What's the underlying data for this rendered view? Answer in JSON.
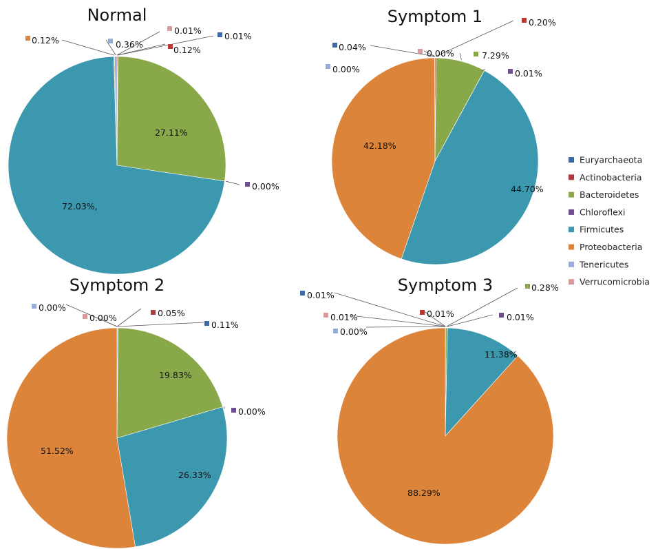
{
  "legend": [
    {
      "name": "Euryarchaeota",
      "color": "#3e6ba8"
    },
    {
      "name": "Actinobacteria",
      "color": "#b63a3a"
    },
    {
      "name": "Bacteroidetes",
      "color": "#88a84a"
    },
    {
      "name": "Chloroflexi",
      "color": "#6e4d91"
    },
    {
      "name": "Firmicutes",
      "color": "#3c98ae"
    },
    {
      "name": "Proteobacteria",
      "color": "#dc843a"
    },
    {
      "name": "Tenericutes",
      "color": "#94aed8"
    },
    {
      "name": "Verrucomicrobia",
      "color": "#d89a9a"
    }
  ],
  "chart_data": [
    {
      "type": "pie",
      "title": "Normal",
      "categories": [
        "Euryarchaeota",
        "Actinobacteria",
        "Bacteroidetes",
        "Chloroflexi",
        "Firmicutes",
        "Proteobacteria",
        "Tenericutes",
        "Verrucomicrobia"
      ],
      "values": [
        0.01,
        0.12,
        27.11,
        0.0,
        72.03,
        0.12,
        0.36,
        0.01
      ],
      "labels": [
        "0.01%",
        "0.12%",
        "27.11%",
        "0.00%",
        "72.03%,",
        "0.12%",
        "0.36%",
        "0.01%"
      ]
    },
    {
      "type": "pie",
      "title": "Symptom 1",
      "categories": [
        "Euryarchaeota",
        "Actinobacteria",
        "Bacteroidetes",
        "Chloroflexi",
        "Firmicutes",
        "Proteobacteria",
        "Tenericutes",
        "Verrucomicrobia"
      ],
      "values": [
        0.04,
        0.2,
        7.29,
        0.01,
        44.7,
        42.18,
        0.0,
        0.0
      ],
      "labels": [
        "0.04%",
        "0.20%",
        "7.29%",
        "0.01%",
        "44.70%",
        "42.18%",
        "0.00%",
        "0.00%"
      ]
    },
    {
      "type": "pie",
      "title": "Symptom 2",
      "categories": [
        "Euryarchaeota",
        "Actinobacteria",
        "Bacteroidetes",
        "Chloroflexi",
        "Firmicutes",
        "Proteobacteria",
        "Tenericutes",
        "Verrucomicrobia"
      ],
      "values": [
        0.11,
        0.05,
        19.83,
        0.0,
        26.33,
        51.52,
        0.0,
        0.0
      ],
      "labels": [
        "0.11%",
        "0.05%",
        "19.83%",
        "0.00%",
        "26.33%",
        "51.52%",
        "0.00%",
        "0.00%"
      ]
    },
    {
      "type": "pie",
      "title": "Symptom 3",
      "categories": [
        "Euryarchaeota",
        "Actinobacteria",
        "Bacteroidetes",
        "Chloroflexi",
        "Firmicutes",
        "Proteobacteria",
        "Tenericutes",
        "Verrucomicrobia"
      ],
      "values": [
        0.01,
        0.01,
        0.28,
        0.01,
        11.38,
        88.29,
        0.0,
        0.01
      ],
      "labels": [
        "0.01%",
        "0.01%",
        "0.28%",
        "0.01%",
        "11.38%",
        "88.29%",
        "0.00%",
        "0.01%"
      ]
    }
  ]
}
